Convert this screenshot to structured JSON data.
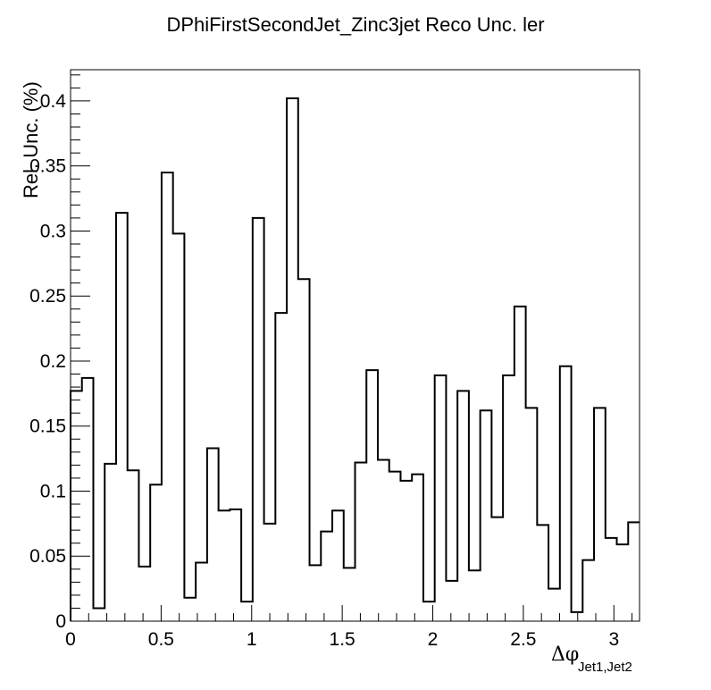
{
  "chart_data": {
    "type": "bar",
    "style": "step-histogram",
    "title": "DPhiFirstSecondJet_Zinc3jet Reco Unc. ler",
    "ylabel": "Rel. Unc. (%)",
    "xlabel": "Δφ",
    "xlabel_sub": "Jet1,Jet2",
    "xlim": [
      0,
      3.14159
    ],
    "ylim": [
      0,
      0.424
    ],
    "x_ticks": [
      "0",
      "0.5",
      "1",
      "1.5",
      "2",
      "2.5",
      "3"
    ],
    "x_tick_values": [
      0,
      0.5,
      1,
      1.5,
      2,
      2.5,
      3
    ],
    "y_ticks": [
      "0",
      "0.05",
      "0.1",
      "0.15",
      "0.2",
      "0.25",
      "0.3",
      "0.35",
      "0.4"
    ],
    "y_tick_values": [
      0,
      0.05,
      0.1,
      0.15,
      0.2,
      0.25,
      0.3,
      0.35,
      0.4
    ],
    "grid": false,
    "line_color": "#000000",
    "bin_count": 50,
    "values": [
      0.177,
      0.187,
      0.01,
      0.121,
      0.314,
      0.116,
      0.042,
      0.105,
      0.345,
      0.298,
      0.018,
      0.045,
      0.133,
      0.085,
      0.086,
      0.015,
      0.31,
      0.075,
      0.237,
      0.402,
      0.263,
      0.043,
      0.069,
      0.085,
      0.041,
      0.122,
      0.193,
      0.124,
      0.115,
      0.108,
      0.113,
      0.015,
      0.189,
      0.031,
      0.177,
      0.039,
      0.162,
      0.08,
      0.189,
      0.242,
      0.164,
      0.074,
      0.025,
      0.196,
      0.007,
      0.047,
      0.164,
      0.064,
      0.059,
      0.076
    ]
  }
}
